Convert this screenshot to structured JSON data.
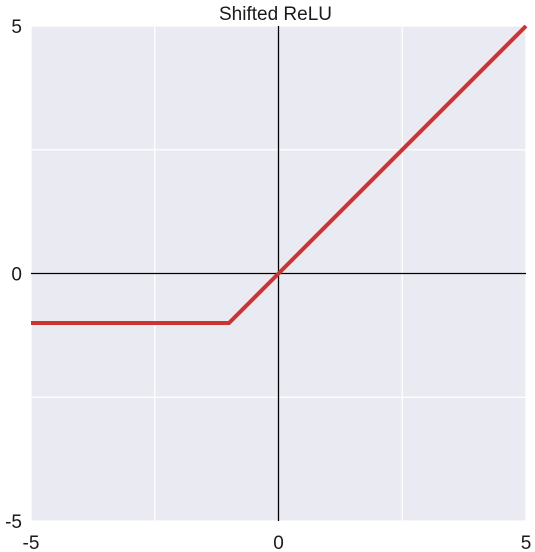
{
  "chart_data": {
    "type": "line",
    "title": "Shifted ReLU",
    "xlabel": "",
    "ylabel": "",
    "xlim": [
      -5,
      5
    ],
    "ylim": [
      -5,
      5
    ],
    "x_ticks": [
      -5,
      0,
      5
    ],
    "y_ticks": [
      -5,
      0,
      5
    ],
    "x_tick_labels": [
      "-5",
      "0",
      "5"
    ],
    "y_tick_labels": [
      "-5",
      "0",
      "5"
    ],
    "grid": true,
    "grid_x": [
      -5,
      -2.5,
      0,
      2.5,
      5
    ],
    "grid_y": [
      -5,
      -2.5,
      0,
      2.5,
      5
    ],
    "zero_axes": true,
    "series": [
      {
        "x": [
          -5,
          -1,
          0,
          5
        ],
        "y": [
          -1,
          -1,
          0,
          5
        ],
        "color": "#cc3333"
      }
    ],
    "background_color": "#eaeaf2",
    "grid_color": "#ffffff",
    "axis_line_color": "#000000"
  }
}
